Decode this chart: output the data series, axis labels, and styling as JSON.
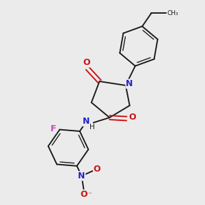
{
  "bg_color": "#ebebeb",
  "bond_color": "#1a1a1a",
  "N_color": "#2222cc",
  "O_color": "#cc1111",
  "F_color": "#cc44bb",
  "figsize": [
    3.0,
    3.0
  ],
  "dpi": 100,
  "xlim": [
    0,
    10
  ],
  "ylim": [
    0,
    10
  ]
}
